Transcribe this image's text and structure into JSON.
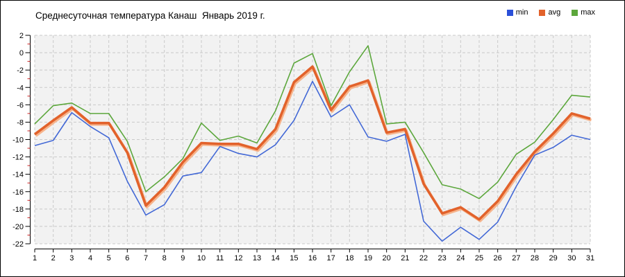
{
  "title": "Среднесуточная температура Канаш  Январь 2019 г.",
  "legend": [
    {
      "label": "min",
      "color": "#2b50d9"
    },
    {
      "label": "avg",
      "color": "#e2622b"
    },
    {
      "label": "max",
      "color": "#5ca73c"
    }
  ],
  "colors": {
    "min_line": "#4268d6",
    "avg_line": "#e2622b",
    "avg_halo": "#f6b48c",
    "max_line": "#5ca73c",
    "plot_bg": "#f2f2f2",
    "grid": "#c9c9c9",
    "axis": "#000000",
    "minor_tick": "#cc2020"
  },
  "chart_data": {
    "type": "line",
    "title": "Среднесуточная температура Канаш  Январь 2019 г.",
    "xlabel": "",
    "ylabel": "",
    "x": [
      1,
      2,
      3,
      4,
      5,
      6,
      7,
      8,
      9,
      10,
      11,
      12,
      13,
      14,
      15,
      16,
      17,
      18,
      19,
      20,
      21,
      22,
      23,
      24,
      25,
      26,
      27,
      28,
      29,
      30,
      31
    ],
    "series": [
      {
        "name": "min",
        "values": [
          -10.7,
          -10.1,
          -6.9,
          -8.5,
          -9.8,
          -14.8,
          -18.7,
          -17.5,
          -14.2,
          -13.8,
          -10.8,
          -11.6,
          -12.0,
          -10.6,
          -7.8,
          -3.3,
          -7.4,
          -6.0,
          -9.7,
          -10.2,
          -9.4,
          -19.4,
          -21.7,
          -20.1,
          -21.5,
          -19.5,
          -15.4,
          -11.8,
          -10.9,
          -9.5,
          -10.0
        ]
      },
      {
        "name": "avg",
        "values": [
          -9.4,
          -7.8,
          -6.3,
          -8.1,
          -8.1,
          -11.5,
          -17.6,
          -15.5,
          -12.6,
          -10.4,
          -10.5,
          -10.5,
          -11.1,
          -8.8,
          -3.4,
          -1.6,
          -6.6,
          -3.9,
          -3.2,
          -9.2,
          -8.8,
          -15.1,
          -18.5,
          -17.8,
          -19.2,
          -17.1,
          -14.0,
          -11.4,
          -9.3,
          -7.0,
          -7.6
        ]
      },
      {
        "name": "max",
        "values": [
          -8.2,
          -6.1,
          -5.8,
          -7.0,
          -7.0,
          -10.2,
          -16.0,
          -14.3,
          -12.2,
          -8.1,
          -10.1,
          -9.6,
          -10.4,
          -6.7,
          -1.2,
          -0.1,
          -6.1,
          -2.2,
          0.8,
          -8.2,
          -8.0,
          -11.5,
          -15.2,
          -15.7,
          -16.8,
          -14.9,
          -11.7,
          -10.3,
          -7.7,
          -4.9,
          -5.1
        ]
      }
    ],
    "ylim": [
      -22,
      2
    ],
    "ytick_step": 2,
    "yminor_step": 1,
    "xticks": [
      1,
      2,
      3,
      4,
      5,
      6,
      7,
      8,
      9,
      10,
      11,
      12,
      13,
      14,
      15,
      16,
      17,
      18,
      19,
      20,
      21,
      22,
      23,
      24,
      25,
      26,
      27,
      28,
      29,
      30,
      31
    ],
    "grid": "dashed",
    "legend_position": "top-right"
  }
}
